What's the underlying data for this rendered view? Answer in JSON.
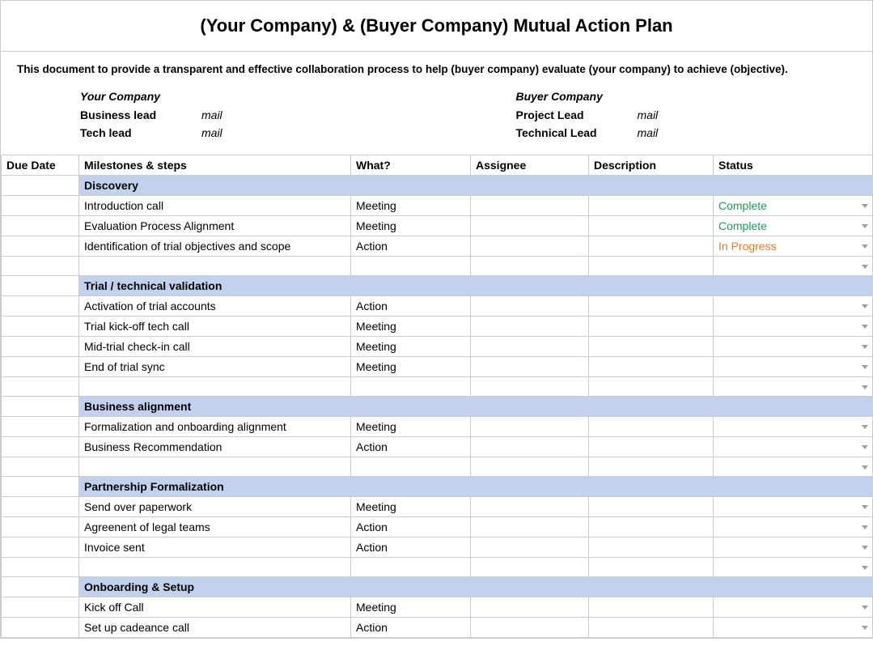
{
  "title": "(Your Company) & (Buyer Company) Mutual Action Plan",
  "subtitle": "This document to provide a transparent and effective collaboration process to help (buyer company) evaluate (your company) to achieve (objective).",
  "colors": {
    "section_bg": "#c2d1ee",
    "border": "#cccccc",
    "status_complete": "#1a9e55",
    "status_in_progress": "#e77b22",
    "caret": "#9e9e9e"
  },
  "contacts": {
    "left": {
      "company": "Your Company",
      "rows": [
        {
          "role": "Business lead",
          "mail": "mail"
        },
        {
          "role": "Tech lead",
          "mail": "mail"
        }
      ]
    },
    "right": {
      "company": "Buyer Company",
      "rows": [
        {
          "role": "Project Lead",
          "mail": "mail"
        },
        {
          "role": "Technical Lead",
          "mail": "mail"
        }
      ]
    }
  },
  "columns": [
    "Due Date",
    "Milestones & steps",
    "What?",
    "Assignee",
    "Description",
    "Status"
  ],
  "sections": [
    {
      "name": "Discovery",
      "rows": [
        {
          "milestone": "Introduction call",
          "what": "Meeting",
          "status": "Complete",
          "status_class": "status-complete"
        },
        {
          "milestone": "Evaluation Process Alignment",
          "what": "Meeting",
          "status": "Complete",
          "status_class": "status-complete"
        },
        {
          "milestone": "Identification of trial objectives and scope",
          "what": "Action",
          "status": "In Progress",
          "status_class": "status-progress"
        },
        {
          "blank": true
        }
      ]
    },
    {
      "name": "Trial / technical validation",
      "rows": [
        {
          "milestone": "Activation of trial accounts",
          "what": "Action",
          "status": "",
          "status_class": ""
        },
        {
          "milestone": "Trial kick-off tech call",
          "what": "Meeting",
          "status": "",
          "status_class": ""
        },
        {
          "milestone": "Mid-trial check-in call",
          "what": "Meeting",
          "status": "",
          "status_class": ""
        },
        {
          "milestone": "End of trial sync",
          "what": "Meeting",
          "status": "",
          "status_class": ""
        },
        {
          "blank": true
        }
      ]
    },
    {
      "name": "Business alignment",
      "rows": [
        {
          "milestone": "Formalization and onboarding alignment",
          "what": "Meeting",
          "status": "",
          "status_class": ""
        },
        {
          "milestone": "Business Recommendation",
          "what": "Action",
          "status": "",
          "status_class": ""
        },
        {
          "blank": true
        }
      ]
    },
    {
      "name": "Partnership Formalization",
      "rows": [
        {
          "milestone": "Send over paperwork",
          "what": "Meeting",
          "status": "",
          "status_class": ""
        },
        {
          "milestone": "Agreenent of legal teams",
          "what": "Action",
          "status": "",
          "status_class": ""
        },
        {
          "milestone": "Invoice sent",
          "what": "Action",
          "status": "",
          "status_class": ""
        },
        {
          "blank": true
        }
      ]
    },
    {
      "name": "Onboarding & Setup",
      "rows": [
        {
          "milestone": "Kick off Call",
          "what": "Meeting",
          "status": "",
          "status_class": ""
        },
        {
          "milestone": "Set up cadeance call",
          "what": "Action",
          "status": "",
          "status_class": ""
        }
      ]
    }
  ]
}
